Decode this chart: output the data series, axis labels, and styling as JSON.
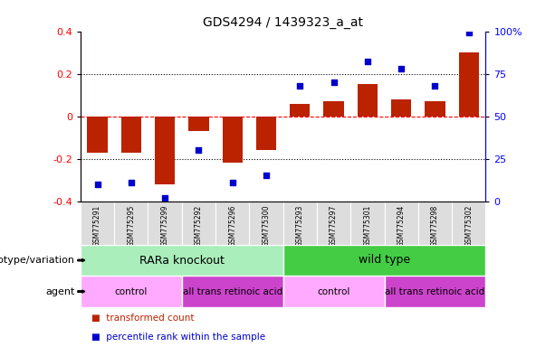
{
  "title": "GDS4294 / 1439323_a_at",
  "samples": [
    "GSM775291",
    "GSM775295",
    "GSM775299",
    "GSM775292",
    "GSM775296",
    "GSM775300",
    "GSM775293",
    "GSM775297",
    "GSM775301",
    "GSM775294",
    "GSM775298",
    "GSM775302"
  ],
  "bar_values": [
    -0.17,
    -0.17,
    -0.32,
    -0.07,
    -0.22,
    -0.16,
    0.06,
    0.07,
    0.15,
    0.08,
    0.07,
    0.3
  ],
  "dot_values": [
    10,
    11,
    2,
    30,
    11,
    15,
    68,
    70,
    82,
    78,
    68,
    99
  ],
  "bar_color": "#bb2200",
  "dot_color": "#0000cc",
  "ylim_left": [
    -0.4,
    0.4
  ],
  "ylim_right": [
    0,
    100
  ],
  "yticks_left": [
    -0.4,
    -0.2,
    0.0,
    0.2,
    0.4
  ],
  "ytick_labels_left": [
    "-0.4",
    "-0.2",
    "0",
    "0.2",
    "0.4"
  ],
  "yticks_right": [
    0,
    25,
    50,
    75,
    100
  ],
  "ytick_labels_right": [
    "0",
    "25",
    "50",
    "75",
    "100%"
  ],
  "hlines": [
    -0.2,
    0.0,
    0.2
  ],
  "hline_styles": [
    "dotted",
    "dashed",
    "dotted"
  ],
  "hline_colors": [
    "black",
    "red",
    "black"
  ],
  "genotype_groups": [
    {
      "label": "RARa knockout",
      "start": 0,
      "end": 6,
      "color": "#aaeea a"
    },
    {
      "label": "wild type",
      "start": 6,
      "end": 12,
      "color": "#44cc44"
    }
  ],
  "agent_groups": [
    {
      "label": "control",
      "start": 0,
      "end": 3,
      "color": "#ffaaff"
    },
    {
      "label": "all trans retinoic acid",
      "start": 3,
      "end": 6,
      "color": "#cc44cc"
    },
    {
      "label": "control",
      "start": 6,
      "end": 9,
      "color": "#ffaaff"
    },
    {
      "label": "all trans retinoic acid",
      "start": 9,
      "end": 12,
      "color": "#cc44cc"
    }
  ],
  "legend_items": [
    {
      "label": "transformed count",
      "color": "#bb2200"
    },
    {
      "label": "percentile rank within the sample",
      "color": "#0000cc"
    }
  ],
  "label_genotype": "genotype/variation",
  "label_agent": "agent",
  "background_color": "#ffffff",
  "sample_box_color": "#dddddd"
}
